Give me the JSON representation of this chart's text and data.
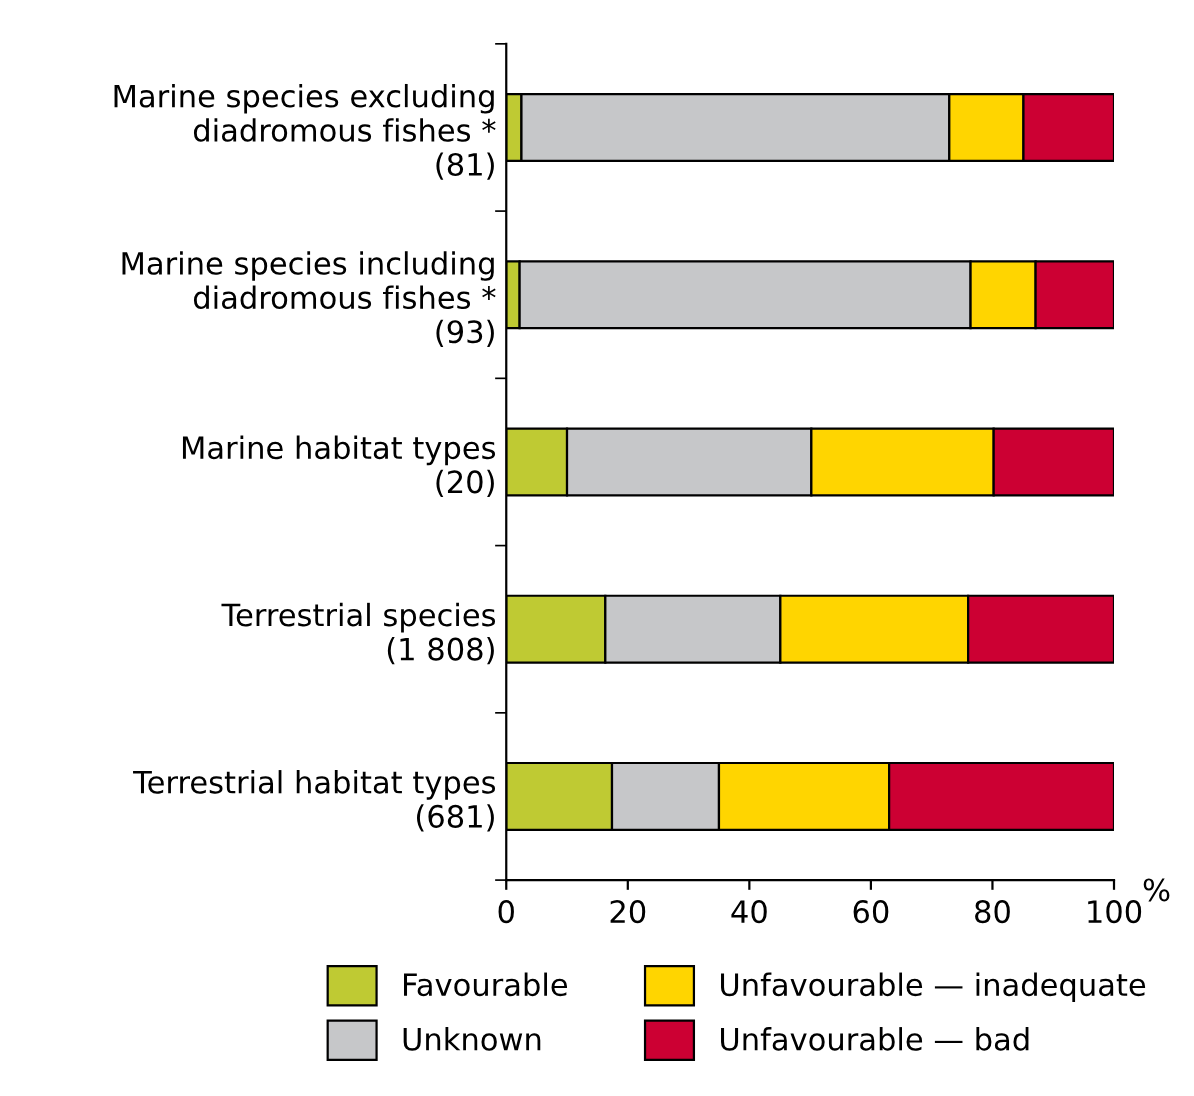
{
  "chart_data": {
    "type": "bar",
    "orientation": "horizontal",
    "stacked": true,
    "xlabel": "%",
    "categories": [
      "Marine species excluding\ndiadromous fishes *\n(81)",
      "Marine species including\ndiadromous fishes *\n(93)",
      "Marine habitat types\n(20)",
      "Terrestrial species\n(1 808)",
      "Terrestrial habitat types\n(681)"
    ],
    "series": [
      {
        "name": "Favourable",
        "color": "#bfca33",
        "values": [
          2.5,
          2.2,
          10,
          16.3,
          17.4
        ]
      },
      {
        "name": "Unknown",
        "color": "#c6c7c9",
        "values": [
          70.4,
          74.2,
          40.2,
          28.8,
          17.6
        ]
      },
      {
        "name": "Unfavourable — inadequate",
        "color": "#ffd500",
        "values": [
          12.2,
          10.7,
          30,
          30.9,
          28
        ]
      },
      {
        "name": "Unfavourable — bad",
        "color": "#cc0033",
        "values": [
          14.9,
          12.9,
          19.8,
          24,
          37
        ]
      }
    ],
    "xlim": [
      0,
      100
    ],
    "xticks": [
      0,
      20,
      40,
      60,
      80,
      100
    ],
    "grid": false,
    "legend": "bottom"
  }
}
